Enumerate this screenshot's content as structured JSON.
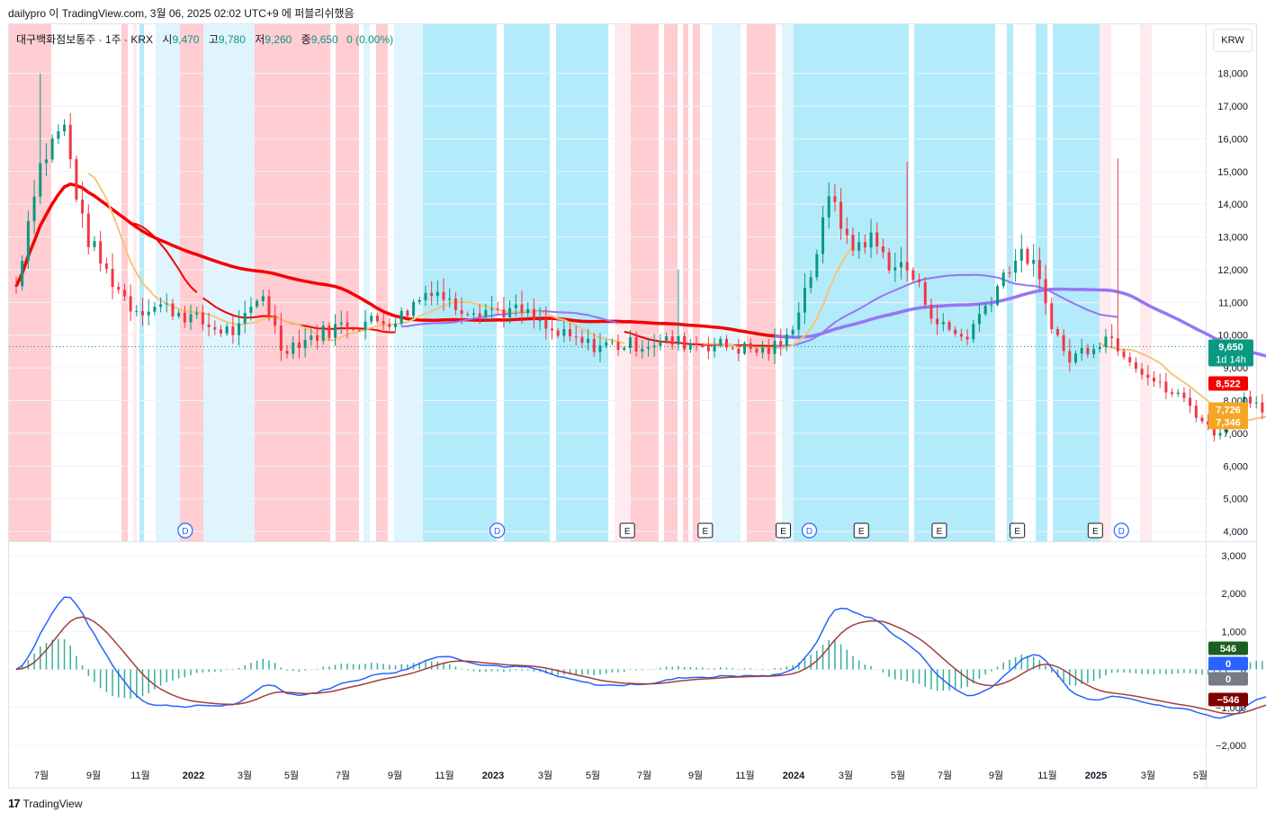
{
  "header": {
    "text": "dailypro 이 TradingView.com, 3월 06, 2025 02:02 UTC+9 에 퍼블리쉬했음"
  },
  "legend": {
    "name": "대구백화점보통주 · 1주 · KRX",
    "open_label": "시",
    "open": "9,470",
    "high_label": "고",
    "high": "9,780",
    "low_label": "저",
    "low": "9,260",
    "close_label": "종",
    "close": "9,650",
    "change": "0 (0.00%)"
  },
  "currency_button": "KRW",
  "footer": {
    "logo": "TradingView"
  },
  "colors": {
    "up": "#089981",
    "down": "#f23645",
    "bg_red": "#ffcdd2",
    "bg_red_light": "#ffebee",
    "bg_blue": "#b3ebfa",
    "bg_blue_light": "#dff4fc",
    "ma_red": "#f40000",
    "ma_purple": "#9575f5",
    "ma_yellow": "#f5c57a",
    "macd": "#2962ff",
    "signal": "#a0403c",
    "hist": "#089981"
  },
  "chart_data": {
    "type": "candlestick",
    "price_axis": {
      "ylim": [
        3700,
        19500
      ],
      "ticks": [
        "4,000",
        "5,000",
        "6,000",
        "7,000",
        "8,000",
        "9,000",
        "10,000",
        "11,000",
        "12,000",
        "13,000",
        "14,000",
        "15,000",
        "16,000",
        "17,000",
        "18,000"
      ]
    },
    "time_axis": {
      "labels": [
        "7월",
        "9월",
        "11월",
        "2022",
        "3월",
        "5월",
        "7월",
        "9월",
        "11월",
        "2023",
        "3월",
        "5월",
        "7월",
        "9월",
        "11월",
        "2024",
        "3월",
        "5월",
        "7월",
        "9월",
        "11월",
        "2025",
        "3월",
        "5월"
      ]
    },
    "price_badges": [
      {
        "label": "9,650",
        "sub": "1d 14h",
        "value": 9650,
        "color": "#089981"
      },
      {
        "label": "8,522",
        "value": 8522,
        "color": "#f40000"
      },
      {
        "label": "7,726",
        "value": 7726,
        "color": "#f5a623"
      },
      {
        "label": "7,346",
        "value": 7346,
        "color": "#f5a623"
      }
    ],
    "event_markers": [
      {
        "type": "D",
        "date": "2021-12"
      },
      {
        "type": "D",
        "date": "2022-12"
      },
      {
        "type": "E",
        "date": "2023-05"
      },
      {
        "type": "E",
        "date": "2023-08"
      },
      {
        "type": "E",
        "date": "2023-11"
      },
      {
        "type": "D",
        "date": "2023-12"
      },
      {
        "type": "E",
        "date": "2024-02"
      },
      {
        "type": "E",
        "date": "2024-05"
      },
      {
        "type": "E",
        "date": "2024-08"
      },
      {
        "type": "E",
        "date": "2024-11"
      },
      {
        "type": "D",
        "date": "2024-12"
      }
    ],
    "ohlc_last": {
      "open": 9470,
      "high": 9780,
      "low": 9260,
      "close": 9650
    },
    "macd_axis": {
      "ylim": [
        -2450,
        3350
      ],
      "ticks": [
        "3,000",
        "2,000",
        "1,000",
        "0",
        "−1,000",
        "−2,000"
      ]
    },
    "macd_badges": [
      {
        "label": "546",
        "value": 546,
        "color": "#1b5e20"
      },
      {
        "label": "0",
        "value": 0,
        "color": "#2962ff"
      },
      {
        "label": "0",
        "value": 0,
        "color": "#787b86"
      },
      {
        "label": "−546",
        "value": -546,
        "color": "#7f0000"
      }
    ],
    "macd_series": [
      "MACD",
      "Signal",
      "Histogram"
    ]
  }
}
